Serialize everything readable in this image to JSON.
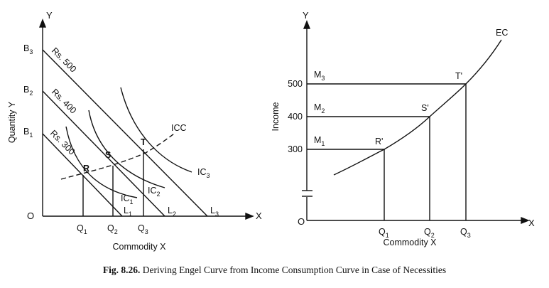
{
  "left_diagram": {
    "y_axis_letter": "Y",
    "x_axis_letter": "X",
    "origin_label": "O",
    "y_axis_title": "Quantity Y",
    "x_axis_title": "Commodity X",
    "intercepts_y": [
      {
        "main": "B",
        "sub": "3"
      },
      {
        "main": "B",
        "sub": "2"
      },
      {
        "main": "B",
        "sub": "1"
      }
    ],
    "budget_lines": [
      "Rs. 500",
      "Rs. 400",
      "Rs. 300"
    ],
    "line_ends": [
      {
        "main": "L",
        "sub": "1"
      },
      {
        "main": "L",
        "sub": "2"
      },
      {
        "main": "L",
        "sub": "3"
      }
    ],
    "curves": [
      {
        "main": "IC",
        "sub": "1"
      },
      {
        "main": "IC",
        "sub": "2"
      },
      {
        "main": "IC",
        "sub": "3"
      }
    ],
    "points": [
      "R",
      "S",
      "T"
    ],
    "icc_label": "ICC",
    "x_ticks": [
      {
        "main": "Q",
        "sub": "1"
      },
      {
        "main": "Q",
        "sub": "2"
      },
      {
        "main": "Q",
        "sub": "3"
      }
    ]
  },
  "right_diagram": {
    "y_axis_letter": "Y",
    "x_axis_letter": "X",
    "origin_label": "O",
    "y_axis_title": "Income",
    "x_axis_title": "Commodity X",
    "income_ticks": [
      "500",
      "400",
      "300"
    ],
    "m_labels": [
      {
        "main": "M",
        "sub": "3"
      },
      {
        "main": "M",
        "sub": "2"
      },
      {
        "main": "M",
        "sub": "1"
      }
    ],
    "points": [
      "T'",
      "S'",
      "R'"
    ],
    "curve_label": "EC",
    "x_ticks": [
      {
        "main": "Q",
        "sub": "1"
      },
      {
        "main": "Q",
        "sub": "2"
      },
      {
        "main": "Q",
        "sub": "3"
      }
    ]
  },
  "caption": {
    "number": "Fig. 8.26.",
    "text": "Deriving Engel Curve from Income Consumption Curve in Case of Necessities"
  }
}
